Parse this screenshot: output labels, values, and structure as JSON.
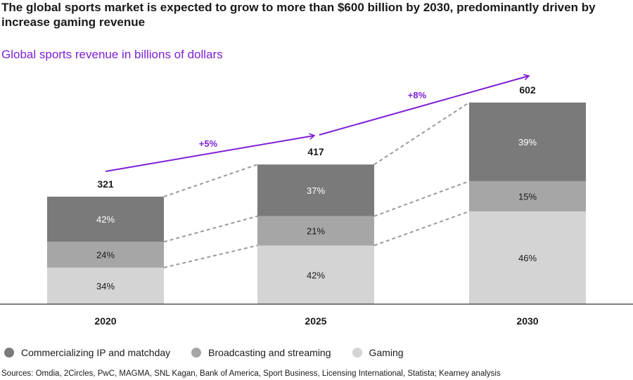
{
  "header": {
    "title": "The global sports market is expected to grow to more than $600 billion by 2030, predominantly driven by increase gaming revenue",
    "subtitle": "Global sports revenue in billions of dollars"
  },
  "legend": [
    {
      "label": "Commercializing IP and matchday",
      "color": "#7a7a7a"
    },
    {
      "label": "Broadcasting and streaming",
      "color": "#a6a6a6"
    },
    {
      "label": "Gaming",
      "color": "#d4d4d4"
    }
  ],
  "sources": "Sources: Omdia, 2Circles, PwC, MAGMA, SNL Kagan, Bank of America, Sport Business, Licensing International, Statista; Kearney analysis",
  "colors": {
    "accent": "#7f1fd6",
    "dashed": "#9a9a9a",
    "axis": "#333333"
  },
  "chart_data": {
    "type": "bar",
    "stacked": true,
    "title": "Global sports revenue in billions of dollars",
    "categories": [
      "2020",
      "2025",
      "2030"
    ],
    "totals": [
      321,
      417,
      602
    ],
    "total_labels": [
      "321",
      "417",
      "602"
    ],
    "series": [
      {
        "name": "Gaming",
        "shares": [
          34,
          42,
          46
        ],
        "labels": [
          "34%",
          "42%",
          "46%"
        ],
        "color": "#d4d4d4"
      },
      {
        "name": "Broadcasting and streaming",
        "shares": [
          24,
          21,
          15
        ],
        "labels": [
          "24%",
          "21%",
          "15%"
        ],
        "color": "#a6a6a6"
      },
      {
        "name": "Commercializing IP and matchday",
        "shares": [
          42,
          37,
          39
        ],
        "labels": [
          "42%",
          "37%",
          "39%"
        ],
        "color": "#7a7a7a"
      }
    ],
    "growth": [
      {
        "from": "2020",
        "to": "2025",
        "label": "+5%"
      },
      {
        "from": "2025",
        "to": "2030",
        "label": "+8%"
      }
    ],
    "ylim": [
      0,
      602
    ]
  }
}
